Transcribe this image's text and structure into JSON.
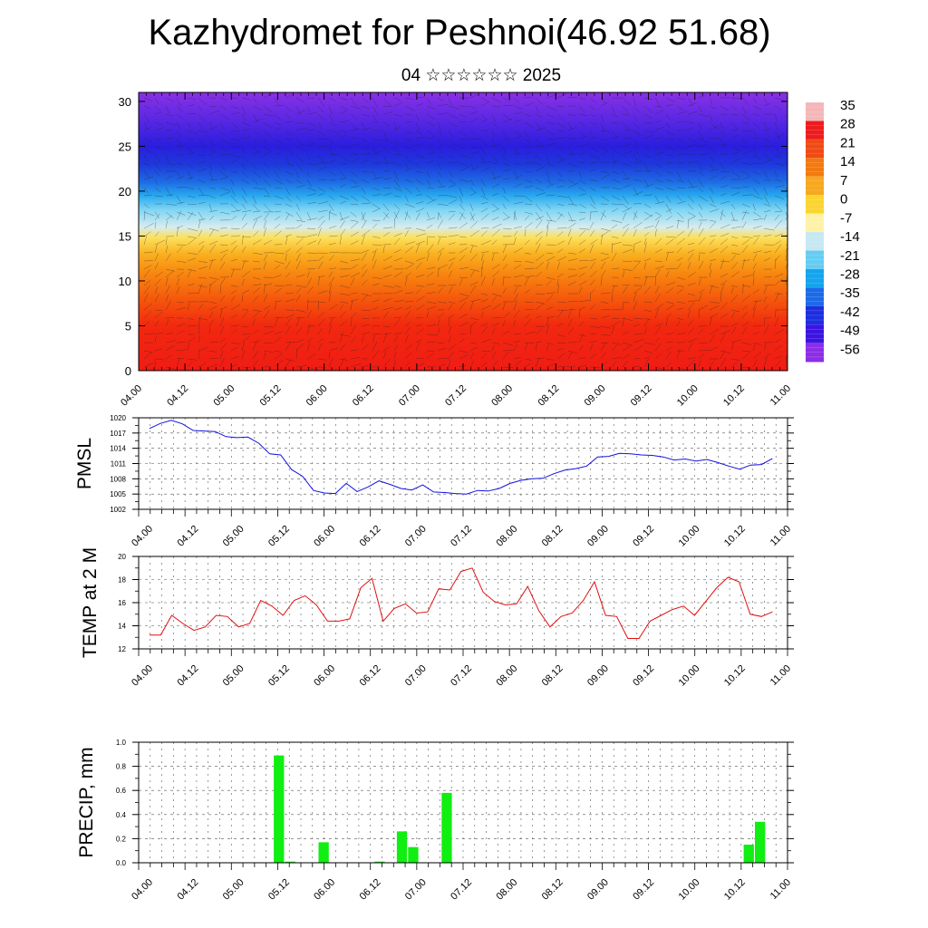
{
  "header": {
    "title": "Kazhydromet for Peshnoi(46.92 51.68)",
    "subtitle": "04 ☆☆☆☆☆☆ 2025"
  },
  "chart_data": [
    {
      "type": "heatmap",
      "name": "temperature-wind-cross-section",
      "y_ticks": [
        "0",
        "5",
        "10",
        "15",
        "20",
        "25",
        "30"
      ],
      "ylim": [
        0,
        31
      ],
      "x_ticks": [
        "04.00",
        "04.12",
        "05.00",
        "05.12",
        "06.00",
        "06.12",
        "07.00",
        "07.12",
        "08.00",
        "08.12",
        "09.00",
        "09.12",
        "10.00",
        "10.12",
        "11.00"
      ],
      "colorbar_labels": [
        "35",
        "28",
        "21",
        "14",
        "7",
        "0",
        "-7",
        "-14",
        "-21",
        "-28",
        "-35",
        "-42",
        "-49",
        "-56"
      ],
      "colorbar_colors": [
        "#f4b6b8",
        "#ee1b1f",
        "#f04a14",
        "#f27a10",
        "#f7a81e",
        "#fbd42e",
        "#fff2a6",
        "#c6e8f3",
        "#66ccf2",
        "#14a4ee",
        "#1c6ae6",
        "#1c2ee0",
        "#3c14e0",
        "#8c2ee6"
      ],
      "profile": [
        {
          "y": 0,
          "color": "#f01c14"
        },
        {
          "y": 5,
          "color": "#f2280f"
        },
        {
          "y": 8,
          "color": "#f5580c"
        },
        {
          "y": 11,
          "color": "#f88a10"
        },
        {
          "y": 13,
          "color": "#fab020"
        },
        {
          "y": 14.8,
          "color": "#fde05a"
        },
        {
          "y": 16,
          "color": "#d6ecef"
        },
        {
          "y": 18,
          "color": "#7cd4f4"
        },
        {
          "y": 19.5,
          "color": "#28a8ef"
        },
        {
          "y": 21,
          "color": "#1e6ce4"
        },
        {
          "y": 23,
          "color": "#1e38dc"
        },
        {
          "y": 25,
          "color": "#2a1ede"
        },
        {
          "y": 28,
          "color": "#5a28e4"
        },
        {
          "y": 31,
          "color": "#8a30e6"
        }
      ],
      "grid": false
    },
    {
      "type": "line",
      "ylabel": "PMSL",
      "ylim": [
        1002,
        1020
      ],
      "y_ticks": [
        "1002",
        "1005",
        "1008",
        "1011",
        "1014",
        "1017",
        "1020"
      ],
      "x_ticks": [
        "04.00",
        "04.12",
        "05.00",
        "05.12",
        "06.00",
        "06.12",
        "07.00",
        "07.12",
        "08.00",
        "08.12",
        "09.00",
        "09.12",
        "10.00",
        "10.12",
        "11.00"
      ],
      "line_color": "#1010e0",
      "grid": true,
      "values": [
        1017.9,
        1018.9,
        1019.5,
        1018.8,
        1017.5,
        1017.4,
        1017.3,
        1016.3,
        1016.1,
        1016.2,
        1015.0,
        1012.9,
        1012.7,
        1009.8,
        1008.5,
        1005.7,
        1005.2,
        1005.1,
        1007.1,
        1005.5,
        1006.4,
        1007.6,
        1006.9,
        1006.1,
        1005.8,
        1006.8,
        1005.4,
        1005.3,
        1005.1,
        1005.0,
        1005.7,
        1005.6,
        1006.1,
        1007.1,
        1007.7,
        1008.0,
        1008.1,
        1009.0,
        1009.7,
        1010.0,
        1010.5,
        1012.3,
        1012.4,
        1013.0,
        1012.9,
        1012.7,
        1012.6,
        1012.3,
        1011.7,
        1011.9,
        1011.5,
        1011.8,
        1011.2,
        1010.5,
        1009.9,
        1010.7,
        1010.8,
        1012.0
      ]
    },
    {
      "type": "line",
      "ylabel": "TEMP at 2 M",
      "ylim": [
        12,
        20
      ],
      "y_ticks": [
        "12",
        "14",
        "16",
        "18",
        "20"
      ],
      "x_ticks": [
        "04.00",
        "04.12",
        "05.00",
        "05.12",
        "06.00",
        "06.12",
        "07.00",
        "07.12",
        "08.00",
        "08.12",
        "09.00",
        "09.12",
        "10.00",
        "10.12",
        "11.00"
      ],
      "line_color": "#e01010",
      "grid": true,
      "values": [
        13.2,
        13.2,
        14.9,
        14.2,
        13.6,
        13.9,
        14.9,
        14.8,
        13.9,
        14.2,
        16.2,
        15.7,
        14.9,
        16.2,
        16.6,
        15.8,
        14.4,
        14.4,
        14.6,
        17.3,
        18.1,
        14.4,
        15.5,
        15.9,
        15.1,
        15.2,
        17.2,
        17.1,
        18.7,
        19.0,
        16.9,
        16.1,
        15.8,
        15.9,
        17.4,
        15.3,
        13.9,
        14.8,
        15.1,
        16.2,
        17.8,
        14.9,
        14.8,
        12.9,
        12.9,
        14.4,
        14.9,
        15.4,
        15.7,
        14.9,
        16.1,
        17.3,
        18.2,
        17.8,
        15.0,
        14.8,
        15.2
      ]
    },
    {
      "type": "bar",
      "ylabel": "PRECIP, mm",
      "ylim": [
        0,
        1.0
      ],
      "y_ticks": [
        "0.0",
        "0.2",
        "0.4",
        "0.6",
        "0.8",
        "1.0"
      ],
      "x_ticks": [
        "04.00",
        "04.12",
        "05.00",
        "05.12",
        "06.00",
        "06.12",
        "07.00",
        "07.12",
        "08.00",
        "08.12",
        "09.00",
        "09.12",
        "10.00",
        "10.12",
        "11.00"
      ],
      "bar_color": "#11ee11",
      "grid": true,
      "values": [
        0,
        0,
        0,
        0,
        0,
        0,
        0,
        0,
        0,
        0,
        0,
        0,
        0.89,
        0.01,
        0,
        0,
        0.17,
        0,
        0,
        0,
        0,
        0.01,
        0,
        0.26,
        0.13,
        0,
        0,
        0.58,
        0,
        0,
        0,
        0,
        0,
        0,
        0,
        0,
        0,
        0,
        0,
        0,
        0,
        0,
        0,
        0,
        0,
        0,
        0,
        0,
        0,
        0,
        0,
        0,
        0,
        0,
        0.15,
        0.34,
        0,
        0
      ]
    }
  ]
}
